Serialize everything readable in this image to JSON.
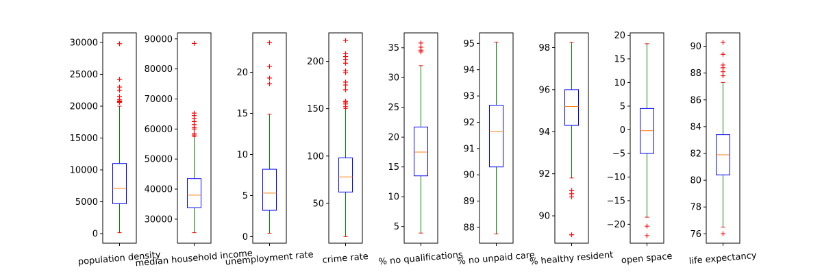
{
  "chart_data": {
    "type": "box",
    "colors": {
      "box": "#0000ff",
      "median": "#ff7f0e",
      "whisker": "#008000",
      "cap": "#ff0000",
      "flier": "#ff0000",
      "axis": "#000000"
    },
    "panels": [
      {
        "category": "population density",
        "ylim": [
          -1500,
          31500
        ],
        "ticks": [
          0,
          5000,
          10000,
          15000,
          20000,
          25000,
          30000
        ],
        "tick_labels": [
          "0",
          "5000",
          "10000",
          "15000",
          "20000",
          "25000",
          "30000"
        ],
        "box": {
          "whislo": 150,
          "q1": 4700,
          "med": 7100,
          "q3": 11000,
          "whishi": 20000
        },
        "fliers": [
          20600,
          20700,
          20800,
          21000,
          21500,
          22500,
          23000,
          24200,
          29800
        ]
      },
      {
        "category": "median household income",
        "ylim": [
          22000,
          92000
        ],
        "ticks": [
          30000,
          40000,
          50000,
          60000,
          70000,
          80000,
          90000
        ],
        "tick_labels": [
          "30000",
          "40000",
          "50000",
          "60000",
          "70000",
          "80000",
          "90000"
        ],
        "box": {
          "whislo": 25500,
          "q1": 33800,
          "med": 38000,
          "q3": 43500,
          "whishi": 57500
        },
        "fliers": [
          58000,
          58500,
          60000,
          60500,
          61500,
          62500,
          63500,
          64500,
          65300,
          88500
        ]
      },
      {
        "category": "unemployment rate",
        "ylim": [
          -0.8,
          24.8
        ],
        "ticks": [
          0,
          5,
          10,
          15,
          20
        ],
        "tick_labels": [
          "0",
          "5",
          "10",
          "15",
          "20"
        ],
        "box": {
          "whislo": 0.4,
          "q1": 3.2,
          "med": 5.3,
          "q3": 8.2,
          "whishi": 14.9
        },
        "fliers": [
          18.6,
          19.3,
          20.7,
          23.6
        ]
      },
      {
        "category": "crime rate",
        "ylim": [
          8,
          230
        ],
        "ticks": [
          50,
          100,
          150,
          200
        ],
        "tick_labels": [
          "50",
          "100",
          "150",
          "200"
        ],
        "box": {
          "whislo": 15,
          "q1": 62,
          "med": 78,
          "q3": 98,
          "whishi": 150
        },
        "fliers": [
          152,
          155,
          157,
          158,
          170,
          175,
          178,
          188,
          190,
          198,
          202,
          205,
          208,
          222
        ]
      },
      {
        "category": "% no qualifications",
        "ylim": [
          2.2,
          37.5
        ],
        "ticks": [
          5,
          10,
          15,
          20,
          25,
          30,
          35
        ],
        "tick_labels": [
          "5",
          "10",
          "15",
          "20",
          "25",
          "30",
          "35"
        ],
        "box": {
          "whislo": 3.9,
          "q1": 13.5,
          "med": 17.5,
          "q3": 21.7,
          "whishi": 32
        },
        "fliers": [
          34.3,
          34.6,
          35.1,
          35.8
        ]
      },
      {
        "category": "% no unpaid care",
        "ylim": [
          87.4,
          95.4
        ],
        "ticks": [
          88,
          89,
          90,
          91,
          92,
          93,
          94,
          95
        ],
        "tick_labels": [
          "88",
          "89",
          "90",
          "91",
          "92",
          "93",
          "94",
          "95"
        ],
        "box": {
          "whislo": 87.75,
          "q1": 90.3,
          "med": 91.65,
          "q3": 92.65,
          "whishi": 95.05
        },
        "fliers": []
      },
      {
        "category": "% healthy resident",
        "ylim": [
          88.7,
          98.7
        ],
        "ticks": [
          90,
          92,
          94,
          96,
          98
        ],
        "tick_labels": [
          "90",
          "92",
          "94",
          "96",
          "98"
        ],
        "box": {
          "whislo": 91.8,
          "q1": 94.3,
          "med": 95.2,
          "q3": 96,
          "whishi": 98.25
        },
        "fliers": [
          89.1,
          90.9,
          91.05,
          91.2
        ]
      },
      {
        "category": "open space",
        "ylim": [
          -24,
          20.5
        ],
        "ticks": [
          -20,
          -15,
          -10,
          -5,
          0,
          5,
          10,
          15,
          20
        ],
        "tick_labels": [
          "−20",
          "−15",
          "−10",
          "−5",
          "0",
          "5",
          "10",
          "15",
          "20"
        ],
        "box": {
          "whislo": -18.5,
          "q1": -5,
          "med": -0.2,
          "q3": 4.5,
          "whishi": 18.2
        },
        "fliers": [
          -20.4,
          -22.4
        ]
      },
      {
        "category": "life expectancy",
        "ylim": [
          75.3,
          91
        ],
        "ticks": [
          76,
          78,
          80,
          82,
          84,
          86,
          88,
          90
        ],
        "tick_labels": [
          "76",
          "78",
          "80",
          "82",
          "84",
          "86",
          "88",
          "90"
        ],
        "box": {
          "whislo": 76.5,
          "q1": 80.4,
          "med": 81.9,
          "q3": 83.4,
          "whishi": 87.3
        },
        "fliers": [
          76,
          87.8,
          88.1,
          88.4,
          88.6,
          89.4,
          90.3
        ]
      }
    ]
  }
}
